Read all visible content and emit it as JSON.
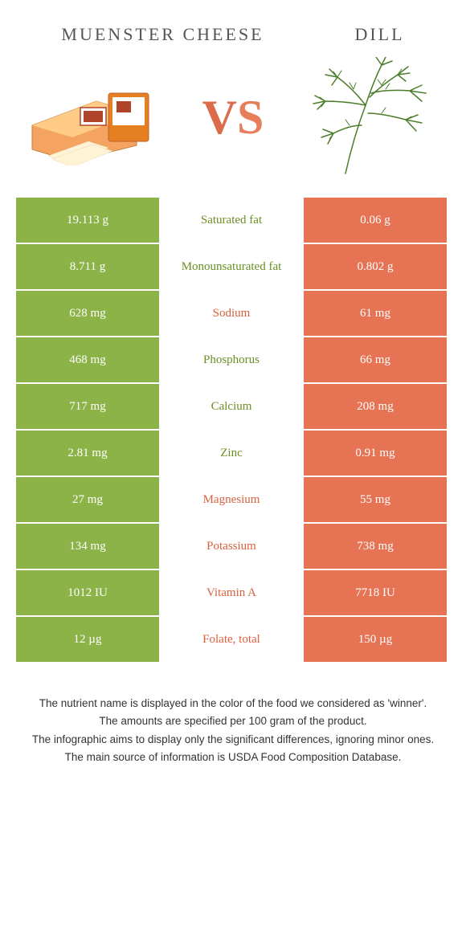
{
  "header": {
    "left_title": "MUENSTER CHEESE",
    "right_title": "DILL",
    "vs": "VS"
  },
  "colors": {
    "green": "#8cb347",
    "orange": "#e57354",
    "label_green": "#6b8e23",
    "label_orange": "#d9603d",
    "background": "#ffffff"
  },
  "rows": [
    {
      "left": "19.113 g",
      "label": "Saturated fat",
      "right": "0.06 g",
      "winner": "left"
    },
    {
      "left": "8.711 g",
      "label": "Monounsaturated fat",
      "right": "0.802 g",
      "winner": "left"
    },
    {
      "left": "628 mg",
      "label": "Sodium",
      "right": "61 mg",
      "winner": "right"
    },
    {
      "left": "468 mg",
      "label": "Phosphorus",
      "right": "66 mg",
      "winner": "left"
    },
    {
      "left": "717 mg",
      "label": "Calcium",
      "right": "208 mg",
      "winner": "left"
    },
    {
      "left": "2.81 mg",
      "label": "Zinc",
      "right": "0.91 mg",
      "winner": "left"
    },
    {
      "left": "27 mg",
      "label": "Magnesium",
      "right": "55 mg",
      "winner": "right"
    },
    {
      "left": "134 mg",
      "label": "Potassium",
      "right": "738 mg",
      "winner": "right"
    },
    {
      "left": "1012 IU",
      "label": "Vitamin A",
      "right": "7718 IU",
      "winner": "right"
    },
    {
      "left": "12 µg",
      "label": "Folate, total",
      "right": "150 µg",
      "winner": "right"
    }
  ],
  "footnote": {
    "line1": "The nutrient name is displayed in the color of the food we considered as 'winner'.",
    "line2": "The amounts are specified per 100 gram of the product.",
    "line3": "The infographic aims to display only the significant differences, ignoring minor ones.",
    "line4": "The main source of information is USDA Food Composition Database."
  }
}
